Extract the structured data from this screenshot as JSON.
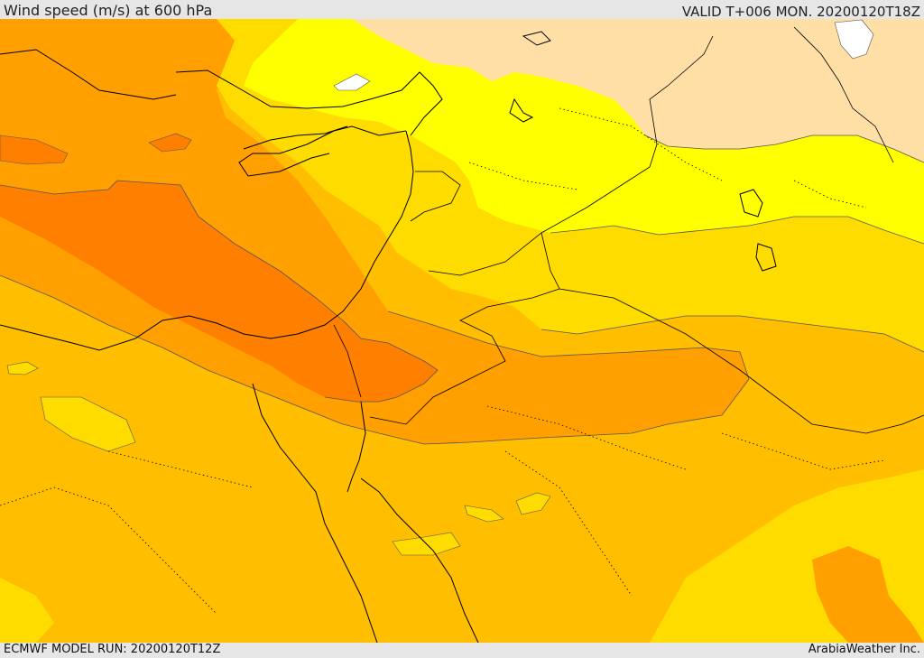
{
  "header": {
    "title": "Wind speed (m/s) at 600 hPa",
    "valid": "VALID T+006 MON. 20200120T18Z"
  },
  "footer": {
    "model_run": "ECMWF MODEL RUN: 20200120T12Z",
    "credit": "ArabiaWeather Inc."
  },
  "map": {
    "variable": "wind speed",
    "level": "600 hPa",
    "units": "m/s",
    "colors": {
      "calm_white": "#ffffff",
      "band_peach": "#ffdfa6",
      "band_yellow": "#ffff00",
      "band_gold": "#ffdc00",
      "band_amber": "#ffbe00",
      "band_orange": "#ffa000",
      "band_deep_orange": "#ff7f00",
      "coastline": "#000000",
      "border": "#000000"
    }
  }
}
